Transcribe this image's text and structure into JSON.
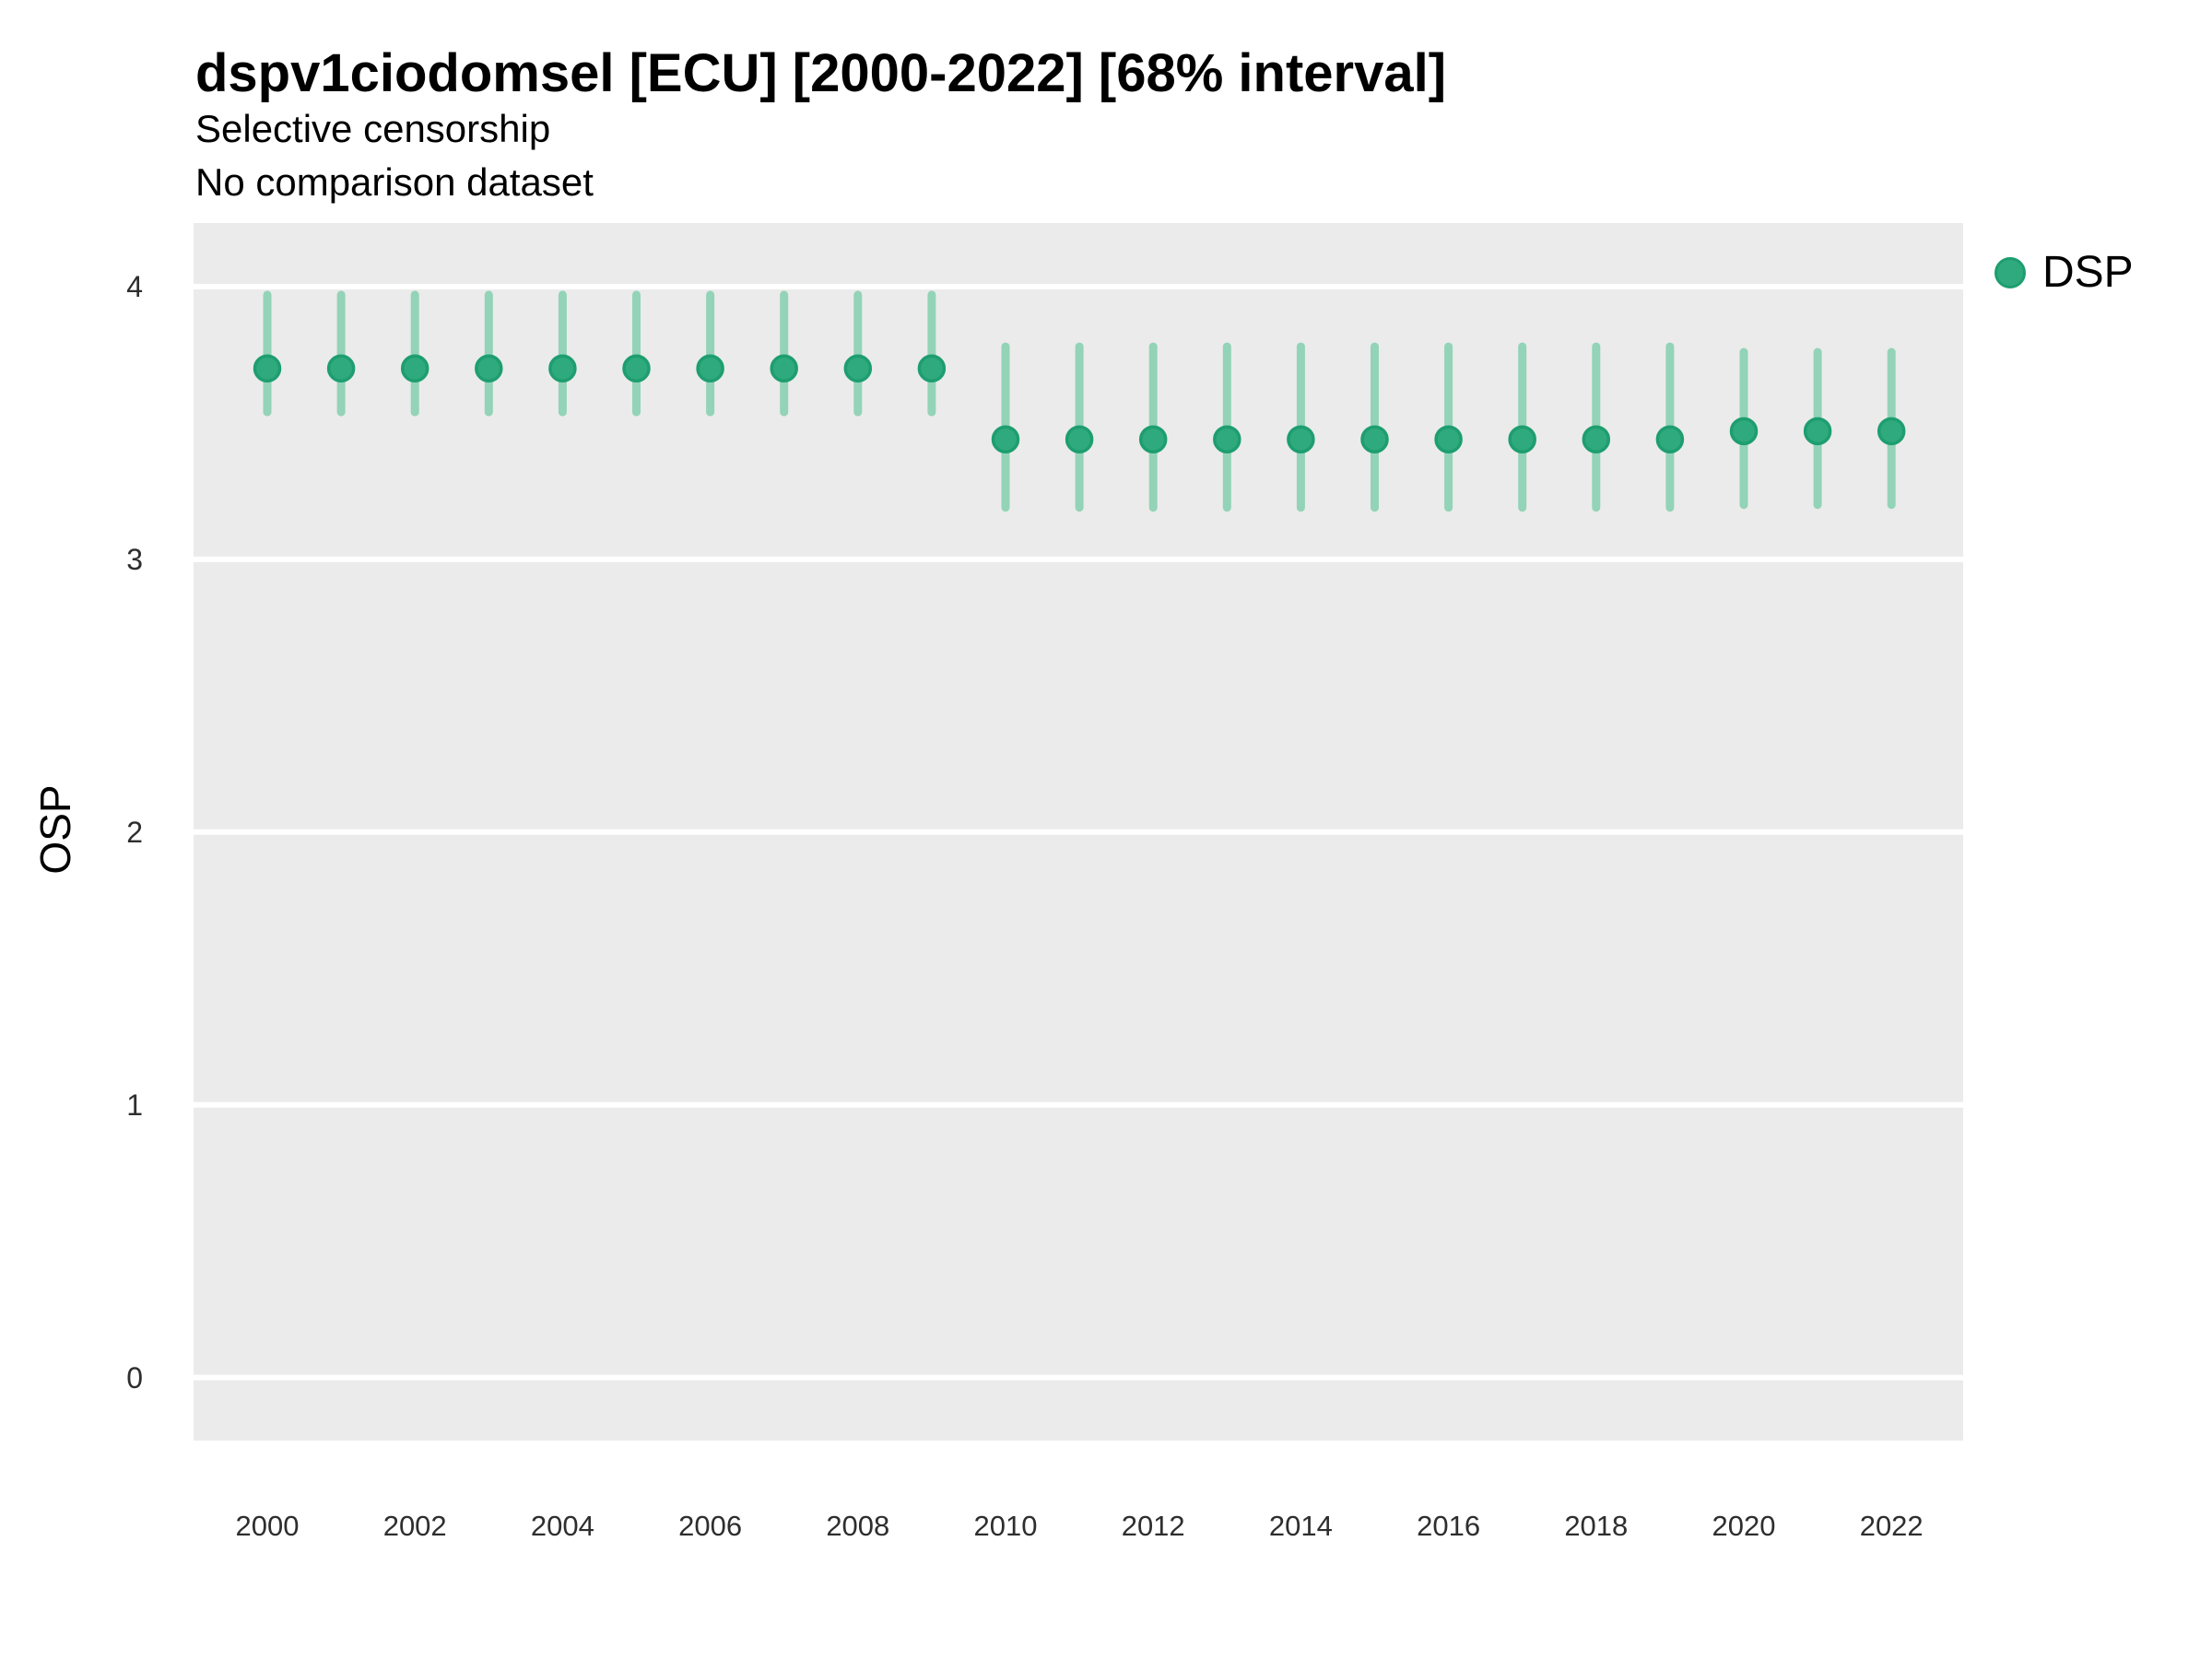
{
  "header": {
    "title": "dspv1ciodomsel [ECU] [2000-2022] [68% interval]",
    "subtitle": "Selective censorship",
    "note": "No comparison dataset"
  },
  "axes": {
    "y_label": "OSP",
    "y_ticks": [
      0,
      1,
      2,
      3,
      4
    ],
    "x_tick_labels": [
      2000,
      2002,
      2004,
      2006,
      2008,
      2010,
      2012,
      2014,
      2016,
      2018,
      2020,
      2022
    ]
  },
  "legend": {
    "position": "right-top",
    "items": [
      {
        "label": "DSP",
        "marker": "circle-icon"
      }
    ]
  },
  "style": {
    "point_fill": "#2FAA7E",
    "point_stroke": "#1E9E70",
    "interval_color": "#93D3B8",
    "panel_bg": "#EBEBEB",
    "grid_color": "#FFFFFF",
    "text_color": "#000000",
    "tick_text_color": "#2E2E2E"
  },
  "chart_data": {
    "type": "scatter",
    "subtype": "pointrange-error-bars",
    "title": "dspv1ciodomsel [ECU] [2000-2022] [68% interval]",
    "subtitle": "Selective censorship",
    "annotation": "No comparison dataset",
    "xlabel": "",
    "ylabel": "OSP",
    "interval_level": "68%",
    "legend_position": "right-top",
    "grid": "horizontal-major-only-white-on-gray",
    "ylim": [
      -0.25,
      4.25
    ],
    "xlim": [
      1999,
      2023
    ],
    "x": [
      2000,
      2001,
      2002,
      2003,
      2004,
      2005,
      2006,
      2007,
      2008,
      2009,
      2010,
      2011,
      2012,
      2013,
      2014,
      2015,
      2016,
      2017,
      2018,
      2019,
      2020,
      2021,
      2022
    ],
    "series": [
      {
        "name": "DSP",
        "estimates": [
          3.7,
          3.7,
          3.7,
          3.7,
          3.7,
          3.7,
          3.7,
          3.7,
          3.7,
          3.7,
          3.44,
          3.44,
          3.44,
          3.44,
          3.44,
          3.44,
          3.44,
          3.44,
          3.44,
          3.44,
          3.47,
          3.47,
          3.47
        ],
        "lower_68": [
          3.54,
          3.54,
          3.54,
          3.54,
          3.54,
          3.54,
          3.54,
          3.54,
          3.54,
          3.54,
          3.19,
          3.19,
          3.19,
          3.19,
          3.19,
          3.19,
          3.19,
          3.19,
          3.19,
          3.19,
          3.2,
          3.2,
          3.2
        ],
        "upper_68": [
          3.97,
          3.97,
          3.97,
          3.97,
          3.97,
          3.97,
          3.97,
          3.97,
          3.97,
          3.97,
          3.78,
          3.78,
          3.78,
          3.78,
          3.78,
          3.78,
          3.78,
          3.78,
          3.78,
          3.78,
          3.76,
          3.76,
          3.76
        ]
      }
    ]
  }
}
